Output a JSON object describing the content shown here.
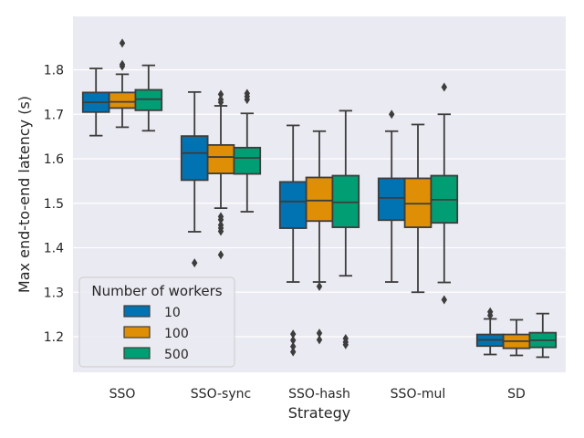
{
  "chart_data": {
    "type": "box",
    "title": "",
    "xlabel": "Strategy",
    "ylabel": "Max end-to-end latency (s)",
    "ylim": [
      1.12,
      1.92
    ],
    "yticks": [
      1.2,
      1.3,
      1.4,
      1.5,
      1.6,
      1.7,
      1.8
    ],
    "ytick_labels": [
      "1.2",
      "1.3",
      "1.4",
      "1.5",
      "1.6",
      "1.7",
      "1.8"
    ],
    "categories": [
      "SSO",
      "SSO-sync",
      "SSO-hash",
      "SSO-mul",
      "SD"
    ],
    "legend": {
      "title": "Number of workers",
      "position": "lower-left",
      "entries": [
        "10",
        "100",
        "500"
      ]
    },
    "series": [
      {
        "name": "10",
        "color": "#0173b2",
        "boxes": [
          {
            "whisker_low": 1.652,
            "q1": 1.705,
            "median": 1.727,
            "q3": 1.749,
            "whisker_high": 1.803,
            "outliers": []
          },
          {
            "whisker_low": 1.436,
            "q1": 1.552,
            "median": 1.613,
            "q3": 1.651,
            "whisker_high": 1.75,
            "outliers": [
              1.366
            ]
          },
          {
            "whisker_low": 1.323,
            "q1": 1.444,
            "median": 1.504,
            "q3": 1.548,
            "whisker_high": 1.675,
            "outliers": [
              1.206,
              1.192,
              1.178,
              1.166
            ]
          },
          {
            "whisker_low": 1.323,
            "q1": 1.462,
            "median": 1.512,
            "q3": 1.556,
            "whisker_high": 1.662,
            "outliers": [
              1.7
            ]
          },
          {
            "whisker_low": 1.16,
            "q1": 1.179,
            "median": 1.193,
            "q3": 1.205,
            "whisker_high": 1.24,
            "outliers": [
              1.256,
              1.248
            ]
          }
        ]
      },
      {
        "name": "100",
        "color": "#de8f05",
        "boxes": [
          {
            "whisker_low": 1.671,
            "q1": 1.714,
            "median": 1.728,
            "q3": 1.749,
            "whisker_high": 1.79,
            "outliers": [
              1.86,
              1.812,
              1.808
            ]
          },
          {
            "whisker_low": 1.489,
            "q1": 1.567,
            "median": 1.604,
            "q3": 1.631,
            "whisker_high": 1.719,
            "outliers": [
              1.745,
              1.733,
              1.727,
              1.47,
              1.463,
              1.451,
              1.444,
              1.437,
              1.384
            ]
          },
          {
            "whisker_low": 1.323,
            "q1": 1.46,
            "median": 1.506,
            "q3": 1.558,
            "whisker_high": 1.662,
            "outliers": [
              1.313,
              1.208,
              1.193
            ]
          },
          {
            "whisker_low": 1.3,
            "q1": 1.446,
            "median": 1.499,
            "q3": 1.556,
            "whisker_high": 1.677,
            "outliers": []
          },
          {
            "whisker_low": 1.158,
            "q1": 1.174,
            "median": 1.19,
            "q3": 1.205,
            "whisker_high": 1.238,
            "outliers": []
          }
        ]
      },
      {
        "name": "500",
        "color": "#029e73",
        "boxes": [
          {
            "whisker_low": 1.663,
            "q1": 1.709,
            "median": 1.734,
            "q3": 1.755,
            "whisker_high": 1.81,
            "outliers": []
          },
          {
            "whisker_low": 1.481,
            "q1": 1.566,
            "median": 1.602,
            "q3": 1.625,
            "whisker_high": 1.702,
            "outliers": [
              1.747,
              1.74,
              1.733
            ]
          },
          {
            "whisker_low": 1.337,
            "q1": 1.446,
            "median": 1.502,
            "q3": 1.562,
            "whisker_high": 1.708,
            "outliers": [
              1.196,
              1.188,
              1.182
            ]
          },
          {
            "whisker_low": 1.322,
            "q1": 1.456,
            "median": 1.508,
            "q3": 1.562,
            "whisker_high": 1.7,
            "outliers": [
              1.761,
              1.283
            ]
          },
          {
            "whisker_low": 1.154,
            "q1": 1.176,
            "median": 1.192,
            "q3": 1.209,
            "whisker_high": 1.252,
            "outliers": []
          }
        ]
      }
    ]
  }
}
